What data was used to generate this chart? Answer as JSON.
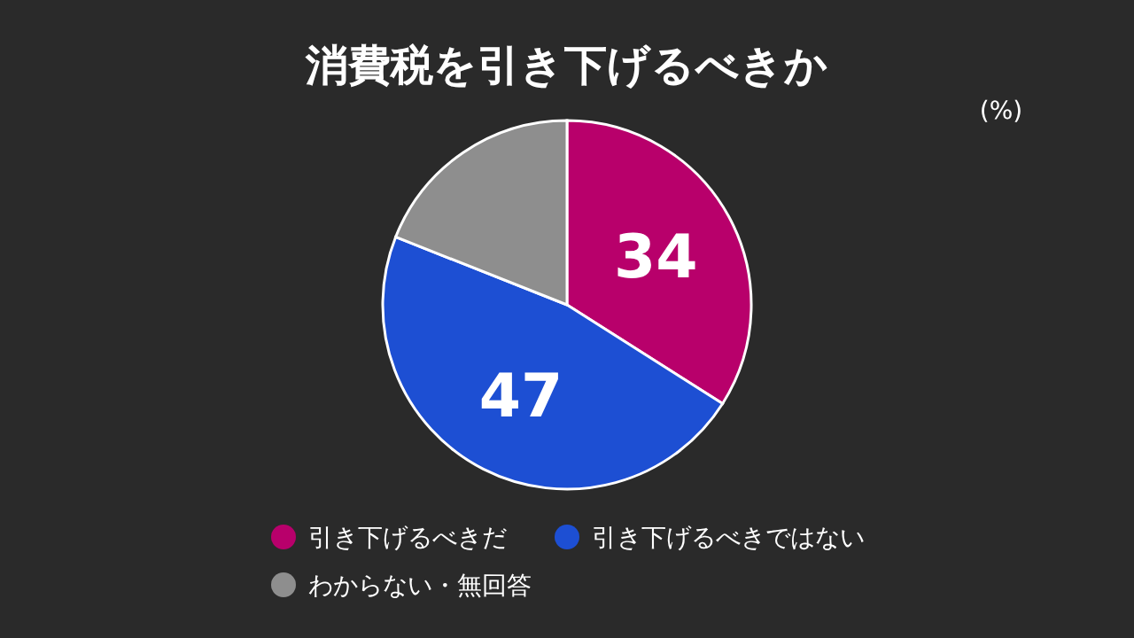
{
  "chart_data": {
    "type": "pie",
    "title": "消費税を引き下げるべきか",
    "categories": [
      "引き下げるべきだ",
      "引き下げるべきではない",
      "わからない・無回答"
    ],
    "values": [
      34,
      47,
      19
    ],
    "colors": [
      "#b8006b",
      "#1d4fd3",
      "#8e8e8e"
    ],
    "value_labels": [
      "34",
      "47",
      null
    ],
    "annotations": [
      "(%)"
    ],
    "legend": "bottom"
  }
}
